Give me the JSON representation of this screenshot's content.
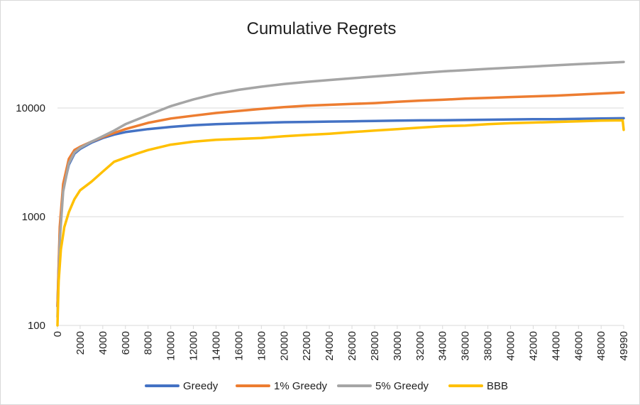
{
  "chart_data": {
    "type": "line",
    "title": "Cumulative Regrets",
    "xlabel": "",
    "ylabel": "",
    "y_scale": "log",
    "ylim": [
      100,
      30000
    ],
    "xlim": [
      0,
      49990
    ],
    "grid": "horizontal",
    "legend_position": "bottom",
    "y_ticks": [
      "100",
      "1000",
      "10000"
    ],
    "x_ticks": [
      "0",
      "2000",
      "4000",
      "6000",
      "8000",
      "10000",
      "12000",
      "14000",
      "16000",
      "18000",
      "20000",
      "22000",
      "24000",
      "26000",
      "28000",
      "30000",
      "32000",
      "34000",
      "36000",
      "38000",
      "40000",
      "42000",
      "44000",
      "46000",
      "48000",
      "49990"
    ],
    "series": [
      {
        "name": "Greedy",
        "color": "#4472c4",
        "x": [
          0,
          200,
          500,
          1000,
          1500,
          2000,
          3000,
          4000,
          5000,
          6000,
          8000,
          10000,
          12000,
          14000,
          16000,
          18000,
          20000,
          22000,
          24000,
          26000,
          28000,
          30000,
          32000,
          34000,
          36000,
          38000,
          40000,
          42000,
          44000,
          46000,
          48000,
          49990
        ],
        "y": [
          150,
          700,
          1800,
          3000,
          3800,
          4200,
          4800,
          5300,
          5700,
          6000,
          6400,
          6700,
          6950,
          7100,
          7200,
          7300,
          7400,
          7450,
          7500,
          7550,
          7600,
          7650,
          7700,
          7720,
          7750,
          7800,
          7850,
          7880,
          7900,
          7950,
          8000,
          8050
        ]
      },
      {
        "name": "1% Greedy",
        "color": "#ed7d31",
        "x": [
          0,
          200,
          500,
          1000,
          1500,
          2000,
          3000,
          4000,
          5000,
          6000,
          8000,
          10000,
          12000,
          14000,
          16000,
          18000,
          20000,
          22000,
          24000,
          26000,
          28000,
          30000,
          32000,
          34000,
          36000,
          38000,
          40000,
          42000,
          44000,
          46000,
          48000,
          49990
        ],
        "y": [
          150,
          800,
          2000,
          3400,
          4100,
          4400,
          4900,
          5400,
          5900,
          6400,
          7300,
          8000,
          8500,
          9000,
          9400,
          9800,
          10200,
          10500,
          10700,
          10900,
          11100,
          11400,
          11700,
          11900,
          12200,
          12400,
          12600,
          12800,
          13000,
          13300,
          13600,
          13900
        ]
      },
      {
        "name": "5% Greedy",
        "color": "#a5a5a5",
        "x": [
          0,
          200,
          500,
          1000,
          1500,
          2000,
          3000,
          4000,
          5000,
          6000,
          8000,
          10000,
          12000,
          14000,
          16000,
          18000,
          20000,
          22000,
          24000,
          26000,
          28000,
          30000,
          32000,
          34000,
          36000,
          38000,
          40000,
          42000,
          44000,
          46000,
          48000,
          49990
        ],
        "y": [
          120,
          600,
          1700,
          3100,
          3900,
          4300,
          4900,
          5500,
          6200,
          7100,
          8600,
          10400,
          12000,
          13500,
          14700,
          15700,
          16600,
          17400,
          18100,
          18800,
          19500,
          20200,
          21000,
          21700,
          22300,
          22900,
          23500,
          24100,
          24700,
          25300,
          25900,
          26500
        ]
      },
      {
        "name": "BBB",
        "color": "#ffc000",
        "x": [
          0,
          100,
          300,
          600,
          1000,
          1500,
          2000,
          3000,
          4000,
          5000,
          6000,
          7000,
          8000,
          10000,
          12000,
          14000,
          16000,
          18000,
          20000,
          22000,
          24000,
          26000,
          28000,
          30000,
          32000,
          34000,
          36000,
          38000,
          40000,
          42000,
          44000,
          46000,
          48000,
          49900,
          49990
        ],
        "y": [
          100,
          250,
          500,
          800,
          1100,
          1450,
          1750,
          2100,
          2600,
          3200,
          3500,
          3800,
          4100,
          4600,
          4900,
          5100,
          5200,
          5300,
          5500,
          5650,
          5800,
          6000,
          6200,
          6400,
          6600,
          6800,
          6900,
          7100,
          7250,
          7350,
          7450,
          7550,
          7650,
          7700,
          6300
        ]
      }
    ]
  }
}
